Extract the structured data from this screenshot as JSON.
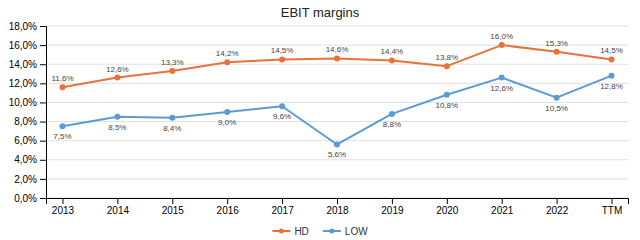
{
  "chart_data": {
    "type": "line",
    "title": "EBIT margins",
    "categories": [
      "2013",
      "2014",
      "2015",
      "2016",
      "2017",
      "2018",
      "2019",
      "2020",
      "2021",
      "2022",
      "TTM"
    ],
    "series": [
      {
        "name": "HD",
        "color": "#E8733A",
        "marker": "circle",
        "values": [
          11.6,
          12.6,
          13.3,
          14.2,
          14.5,
          14.6,
          14.4,
          13.8,
          16.0,
          15.3,
          14.5
        ],
        "value_labels": [
          "11,6%",
          "12,6%",
          "13,3%",
          "14,2%",
          "14,5%",
          "14,6%",
          "14,4%",
          "13,8%",
          "16,0%",
          "15,3%",
          "14,5%"
        ]
      },
      {
        "name": "LOW",
        "color": "#5B9BD5",
        "marker": "circle",
        "values": [
          7.5,
          8.5,
          8.4,
          9.0,
          9.6,
          5.6,
          8.8,
          10.8,
          12.6,
          10.5,
          12.8
        ],
        "value_labels": [
          "7,5%",
          "8,5%",
          "8,4%",
          "9,0%",
          "9,6%",
          "5,6%",
          "8,8%",
          "10,8%",
          "12,6%",
          "10,5%",
          "12,8%"
        ]
      }
    ],
    "ylim": [
      0,
      18
    ],
    "yticks": [
      {
        "value": 0,
        "label": "0,0%"
      },
      {
        "value": 2,
        "label": "2,0%"
      },
      {
        "value": 4,
        "label": "4,0%"
      },
      {
        "value": 6,
        "label": "6,0%"
      },
      {
        "value": 8,
        "label": "8,0%"
      },
      {
        "value": 10,
        "label": "10,0%"
      },
      {
        "value": 12,
        "label": "12,0%"
      },
      {
        "value": 14,
        "label": "14,0%"
      },
      {
        "value": 16,
        "label": "16,0%"
      },
      {
        "value": 18,
        "label": "18,0%"
      }
    ],
    "grid": true,
    "legend": "bottom",
    "data_labels": true
  }
}
